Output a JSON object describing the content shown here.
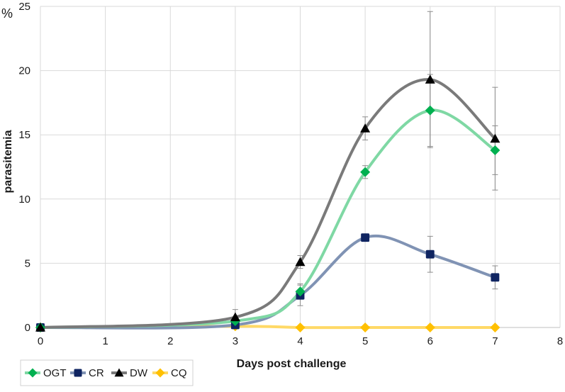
{
  "chart_data": {
    "type": "line",
    "title": "",
    "xlabel": "Days post challenge",
    "ylabel": "parasitemia",
    "y_unit": "%",
    "xlim": [
      0,
      8
    ],
    "ylim": [
      0,
      25
    ],
    "x_ticks": [
      "0",
      "1",
      "2",
      "3",
      "4",
      "5",
      "6",
      "7",
      "8"
    ],
    "y_ticks": [
      "0",
      "5",
      "10",
      "15",
      "20",
      "25"
    ],
    "grid": true,
    "legend_position": "bottom-left",
    "series": [
      {
        "name": "OGT",
        "color": "#00b050",
        "line_color": "#7fd8a4",
        "marker": "diamond",
        "x": [
          0,
          3,
          4,
          5,
          6,
          7
        ],
        "values": [
          0,
          0.5,
          2.8,
          12.1,
          16.9,
          13.8
        ],
        "error": [
          0,
          0.3,
          0.6,
          0.5,
          2.8,
          1.9
        ]
      },
      {
        "name": "CR",
        "color": "#0f2461",
        "line_color": "#8093b4",
        "marker": "square",
        "x": [
          0,
          3,
          4,
          5,
          6,
          7
        ],
        "values": [
          0,
          0.2,
          2.5,
          7.0,
          5.7,
          3.9
        ],
        "error": [
          0,
          0.2,
          0.8,
          0,
          1.4,
          0.9
        ]
      },
      {
        "name": "DW",
        "color": "#000000",
        "line_color": "#7a7a7a",
        "marker": "triangle",
        "x": [
          0,
          3,
          4,
          5,
          6,
          7
        ],
        "values": [
          0,
          0.8,
          5.1,
          15.5,
          19.3,
          14.7
        ],
        "error": [
          0,
          0.6,
          0.5,
          0.9,
          5.3,
          4.0
        ]
      },
      {
        "name": "CQ",
        "color": "#ffc000",
        "line_color": "#ffd966",
        "marker": "diamond",
        "x": [
          0,
          3,
          4,
          5,
          6,
          7
        ],
        "values": [
          0,
          0.1,
          0,
          0,
          0,
          0
        ],
        "error": [
          0,
          0,
          0,
          0,
          0,
          0
        ]
      }
    ]
  }
}
